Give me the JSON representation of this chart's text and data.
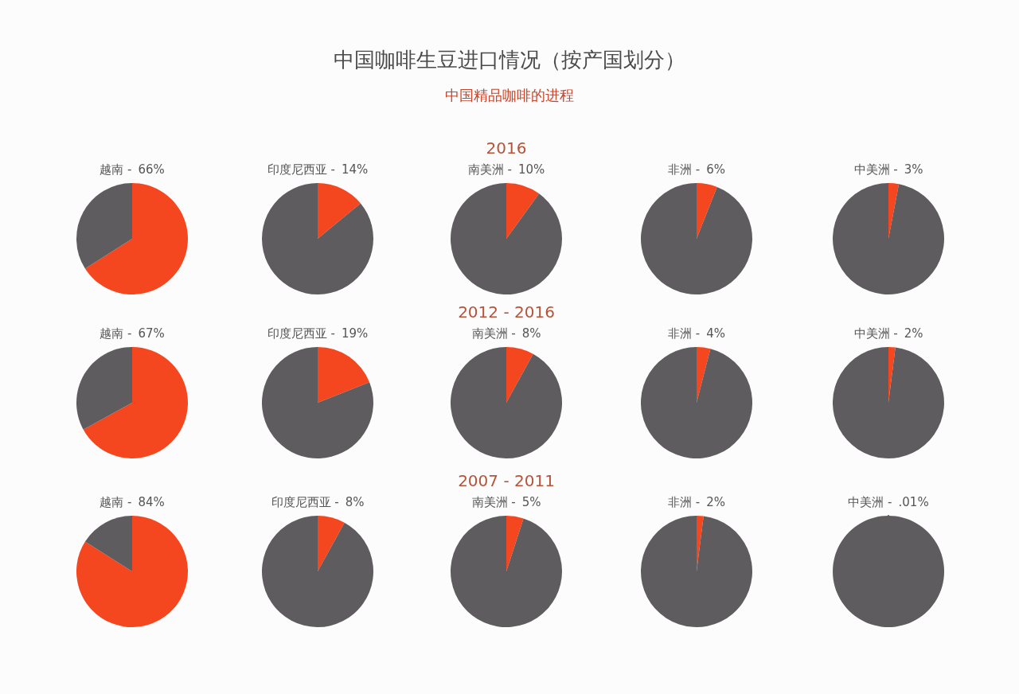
{
  "chart_data": [
    {
      "type": "other",
      "title": "中国咖啡生豆进口情况（按产国划分）",
      "subtitle": "中国精品咖啡的进程"
    },
    {
      "type": "pie",
      "categories": [
        "越南 -",
        null
      ],
      "values": [
        66,
        34
      ],
      "value_labels": [
        "66%",
        null
      ],
      "colors": [
        "#f4461f",
        "#5e5c5e"
      ]
    },
    {
      "type": "pie",
      "categories": [
        "印度尼西亚 -",
        null
      ],
      "values": [
        14,
        86
      ],
      "value_labels": [
        "14%",
        null
      ],
      "colors": [
        "#f4461f",
        "#5e5c5e"
      ]
    },
    {
      "type": "pie",
      "title": "2016",
      "categories": [
        "南美洲 -",
        null
      ],
      "values": [
        10,
        90
      ],
      "value_labels": [
        "10%",
        null
      ],
      "colors": [
        "#f4461f",
        "#5e5c5e"
      ]
    },
    {
      "type": "pie",
      "categories": [
        "非洲 -",
        null
      ],
      "values": [
        6,
        94
      ],
      "value_labels": [
        "6%",
        null
      ],
      "colors": [
        "#f4461f",
        "#5e5c5e"
      ]
    },
    {
      "type": "pie",
      "categories": [
        "中美洲 -",
        null
      ],
      "values": [
        3,
        97
      ],
      "value_labels": [
        "3%",
        null
      ],
      "colors": [
        "#f4461f",
        "#5e5c5e"
      ]
    },
    {
      "type": "pie",
      "categories": [
        "越南 -",
        null
      ],
      "values": [
        67,
        33
      ],
      "value_labels": [
        "67%",
        null
      ],
      "colors": [
        "#f4461f",
        "#5e5c5e"
      ]
    },
    {
      "type": "pie",
      "categories": [
        "印度尼西亚 -",
        null
      ],
      "values": [
        19,
        81
      ],
      "value_labels": [
        "19%",
        null
      ],
      "colors": [
        "#f4461f",
        "#5e5c5e"
      ]
    },
    {
      "type": "pie",
      "title": "2012 - 2016",
      "categories": [
        "南美洲 -",
        null
      ],
      "values": [
        8,
        92
      ],
      "value_labels": [
        "8%",
        null
      ],
      "colors": [
        "#f4461f",
        "#5e5c5e"
      ]
    },
    {
      "type": "pie",
      "categories": [
        "非洲 -",
        null
      ],
      "values": [
        4,
        96
      ],
      "value_labels": [
        "4%",
        null
      ],
      "colors": [
        "#f4461f",
        "#5e5c5e"
      ]
    },
    {
      "type": "pie",
      "categories": [
        "中美洲 -",
        null
      ],
      "values": [
        2,
        98
      ],
      "value_labels": [
        "2%",
        null
      ],
      "colors": [
        "#f4461f",
        "#5e5c5e"
      ]
    },
    {
      "type": "pie",
      "categories": [
        "越南 -",
        null
      ],
      "values": [
        84,
        16
      ],
      "value_labels": [
        "84%",
        null
      ],
      "colors": [
        "#f4461f",
        "#5e5c5e"
      ]
    },
    {
      "type": "pie",
      "categories": [
        "印度尼西亚 -",
        null
      ],
      "values": [
        8,
        92
      ],
      "value_labels": [
        "8%",
        null
      ],
      "colors": [
        "#f4461f",
        "#5e5c5e"
      ]
    },
    {
      "type": "pie",
      "title": "2007 - 2011",
      "categories": [
        "南美洲 -",
        null
      ],
      "values": [
        5,
        95
      ],
      "value_labels": [
        "5%",
        null
      ],
      "colors": [
        "#f4461f",
        "#5e5c5e"
      ]
    },
    {
      "type": "pie",
      "categories": [
        "非洲 -",
        null
      ],
      "values": [
        2,
        98
      ],
      "value_labels": [
        "2%",
        null
      ],
      "colors": [
        "#f4461f",
        "#5e5c5e"
      ]
    },
    {
      "type": "pie",
      "categories": [
        "中美洲 -",
        null
      ],
      "values": [
        0.01,
        99.99
      ],
      "value_labels": [
        ".01%",
        null
      ],
      "colors": [
        "#f4461f",
        "#5e5c5e"
      ]
    }
  ]
}
